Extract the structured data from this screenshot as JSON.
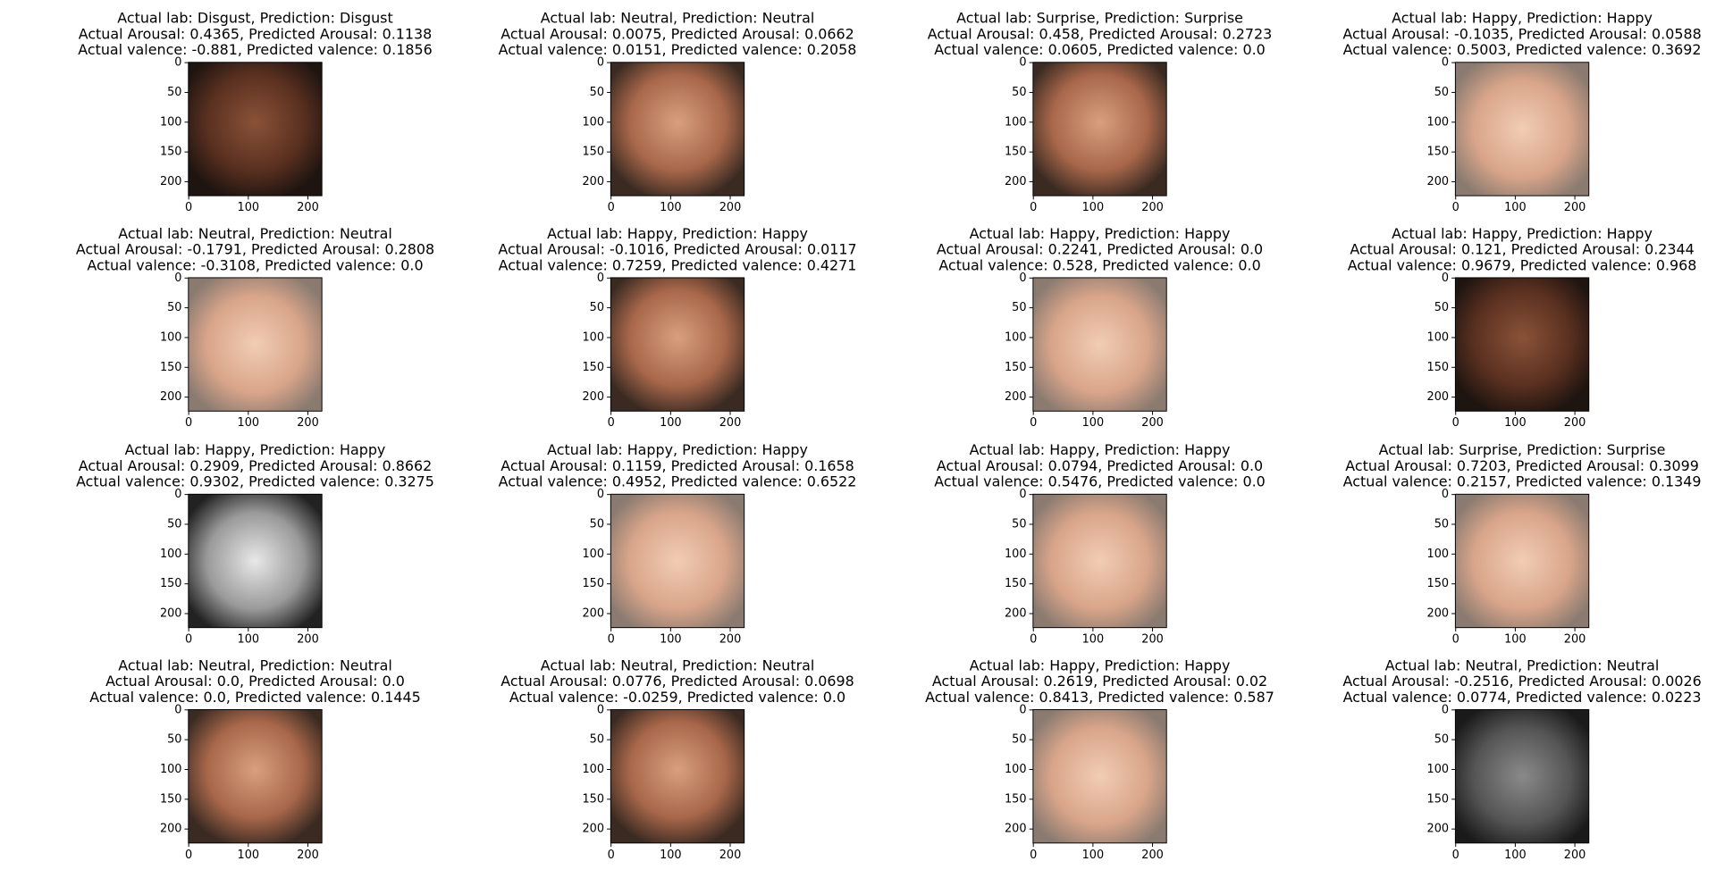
{
  "xlim": [
    -0.5,
    223.5
  ],
  "ylim": [
    223.5,
    -0.5
  ],
  "xticks": [
    0,
    100,
    200
  ],
  "yticks": [
    0,
    50,
    100,
    150,
    200
  ],
  "panels": [
    {
      "title": [
        "Actual lab: Disgust, Prediction: Disgust",
        "Actual Arousal: 0.4365, Predicted Arousal: 0.1138",
        "Actual valence: -0.881, Predicted valence: 0.1856"
      ]
    },
    {
      "title": [
        "Actual lab: Neutral, Prediction: Neutral",
        "Actual Arousal: 0.0075, Predicted Arousal: 0.0662",
        "Actual valence: 0.0151, Predicted valence: 0.2058"
      ]
    },
    {
      "title": [
        "Actual lab: Surprise, Prediction: Surprise",
        "Actual Arousal: 0.458, Predicted Arousal: 0.2723",
        "Actual valence: 0.0605, Predicted valence: 0.0"
      ]
    },
    {
      "title": [
        "Actual lab: Happy, Prediction: Happy",
        "Actual Arousal: -0.1035, Predicted Arousal: 0.0588",
        "Actual valence: 0.5003, Predicted valence: 0.3692"
      ]
    },
    {
      "title": [
        "Actual lab: Neutral, Prediction: Neutral",
        "Actual Arousal: -0.1791, Predicted Arousal: 0.2808",
        "Actual valence: -0.3108, Predicted valence: 0.0"
      ]
    },
    {
      "title": [
        "Actual lab: Happy, Prediction: Happy",
        "Actual Arousal: -0.1016, Predicted Arousal: 0.0117",
        "Actual valence: 0.7259, Predicted valence: 0.4271"
      ]
    },
    {
      "title": [
        "Actual lab: Happy, Prediction: Happy",
        "Actual Arousal: 0.2241, Predicted Arousal: 0.0",
        "Actual valence: 0.528, Predicted valence: 0.0"
      ]
    },
    {
      "title": [
        "Actual lab: Happy, Prediction: Happy",
        "Actual Arousal: 0.121, Predicted Arousal: 0.2344",
        "Actual valence: 0.9679, Predicted valence: 0.968"
      ]
    },
    {
      "title": [
        "Actual lab: Happy, Prediction: Happy",
        "Actual Arousal: 0.2909, Predicted Arousal: 0.8662",
        "Actual valence: 0.9302, Predicted valence: 0.3275"
      ]
    },
    {
      "title": [
        "Actual lab: Happy, Prediction: Happy",
        "Actual Arousal: 0.1159, Predicted Arousal: 0.1658",
        "Actual valence: 0.4952, Predicted valence: 0.6522"
      ]
    },
    {
      "title": [
        "Actual lab: Happy, Prediction: Happy",
        "Actual Arousal: 0.0794, Predicted Arousal: 0.0",
        "Actual valence: 0.5476, Predicted valence: 0.0"
      ]
    },
    {
      "title": [
        "Actual lab: Surprise, Prediction: Surprise",
        "Actual Arousal: 0.7203, Predicted Arousal: 0.3099",
        "Actual valence: 0.2157, Predicted valence: 0.1349"
      ]
    },
    {
      "title": [
        "Actual lab: Neutral, Prediction: Neutral",
        "Actual Arousal: 0.0, Predicted Arousal: 0.0",
        "Actual valence: 0.0, Predicted valence: 0.1445"
      ]
    },
    {
      "title": [
        "Actual lab: Neutral, Prediction: Neutral",
        "Actual Arousal: 0.0776, Predicted Arousal: 0.0698",
        "Actual valence: -0.0259, Predicted valence: 0.0"
      ]
    },
    {
      "title": [
        "Actual lab: Happy, Prediction: Happy",
        "Actual Arousal: 0.2619, Predicted Arousal: 0.02",
        "Actual valence: 0.8413, Predicted valence: 0.587"
      ]
    },
    {
      "title": [
        "Actual lab: Neutral, Prediction: Neutral",
        "Actual Arousal: -0.2516, Predicted Arousal: 0.0026",
        "Actual valence: 0.0774, Predicted valence: 0.0223"
      ]
    }
  ]
}
